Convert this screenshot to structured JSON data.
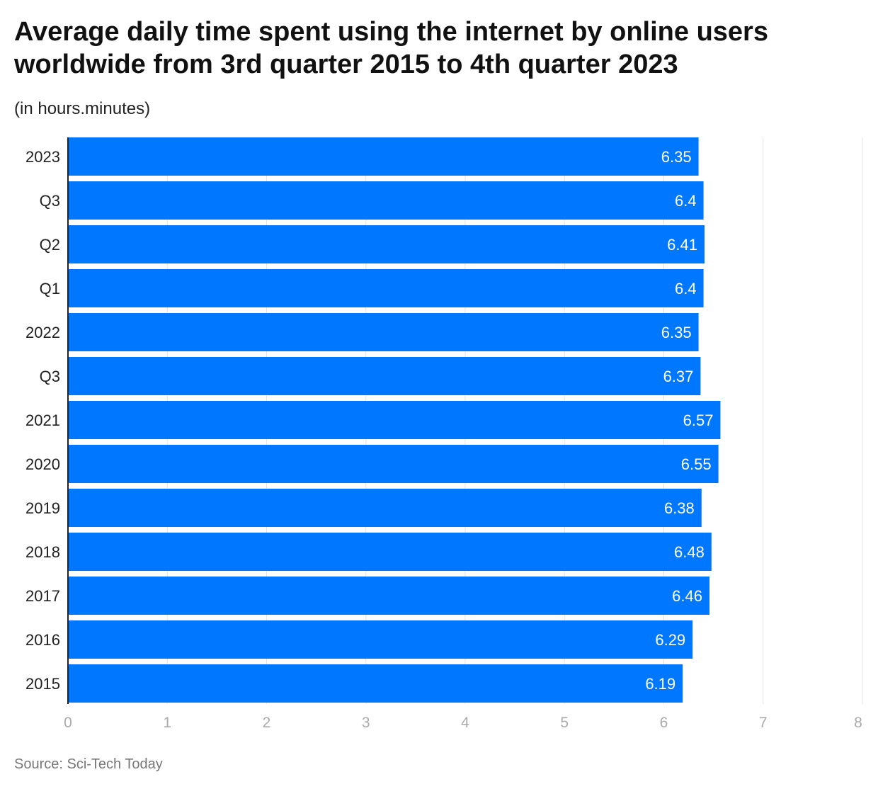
{
  "title": "Average daily time spent using the internet by online users worldwide from 3rd quarter 2015 to 4th quarter 2023",
  "subtitle": "(in hours.minutes)",
  "source": "Source: Sci-Tech Today",
  "colors": {
    "bar": "#0077ff",
    "grid": "#e3e3e3",
    "axis": "#222222",
    "tick_text": "#aaaaaa",
    "label_text": "#222222",
    "value_text": "#ffffff"
  },
  "chart_data": {
    "type": "bar",
    "orientation": "horizontal",
    "title": "Average daily time spent using the internet by online users worldwide from 3rd quarter 2015 to 4th quarter 2023",
    "subtitle": "(in hours.minutes)",
    "categories": [
      "2023",
      "Q3",
      "Q2",
      "Q1",
      "2022",
      "Q3",
      "2021",
      "2020",
      "2019",
      "2018",
      "2017",
      "2016",
      "2015"
    ],
    "values": [
      6.35,
      6.4,
      6.41,
      6.4,
      6.35,
      6.37,
      6.57,
      6.55,
      6.38,
      6.48,
      6.46,
      6.29,
      6.19
    ],
    "data_labels": [
      "6.35",
      "6.4",
      "6.41",
      "6.4",
      "6.35",
      "6.37",
      "6.57",
      "6.55",
      "6.38",
      "6.48",
      "6.46",
      "6.29",
      "6.19"
    ],
    "xlim": [
      0,
      8
    ],
    "x_ticks": [
      "0",
      "1",
      "2",
      "3",
      "4",
      "5",
      "6",
      "7",
      "8"
    ],
    "grid": true
  }
}
